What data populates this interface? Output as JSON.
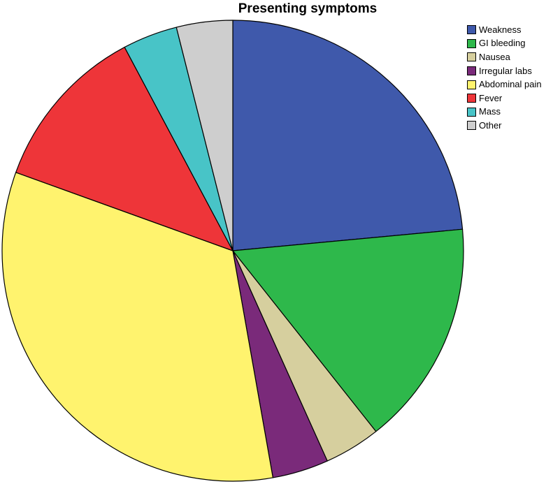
{
  "chart_data": {
    "type": "pie",
    "title": "Presenting symptoms",
    "legend_position": "top-right",
    "slices": [
      {
        "label": "Weakness",
        "value": 24.5,
        "color": "#3F59AB"
      },
      {
        "label": "GI bleeding",
        "value": 16.5,
        "color": "#2EB84B"
      },
      {
        "label": "Nausea",
        "value": 4.1,
        "color": "#D6CF9E"
      },
      {
        "label": "Irregular labs",
        "value": 4.1,
        "color": "#7A2A7A"
      },
      {
        "label": "Abdominal pain",
        "value": 34.7,
        "color": "#FFF36E"
      },
      {
        "label": "Fever",
        "value": 12.2,
        "color": "#EE3539"
      },
      {
        "label": "Mass",
        "value": 4.0,
        "color": "#48C4C7"
      },
      {
        "label": "Other",
        "value": 4.1,
        "color": "#CECECE"
      }
    ]
  }
}
